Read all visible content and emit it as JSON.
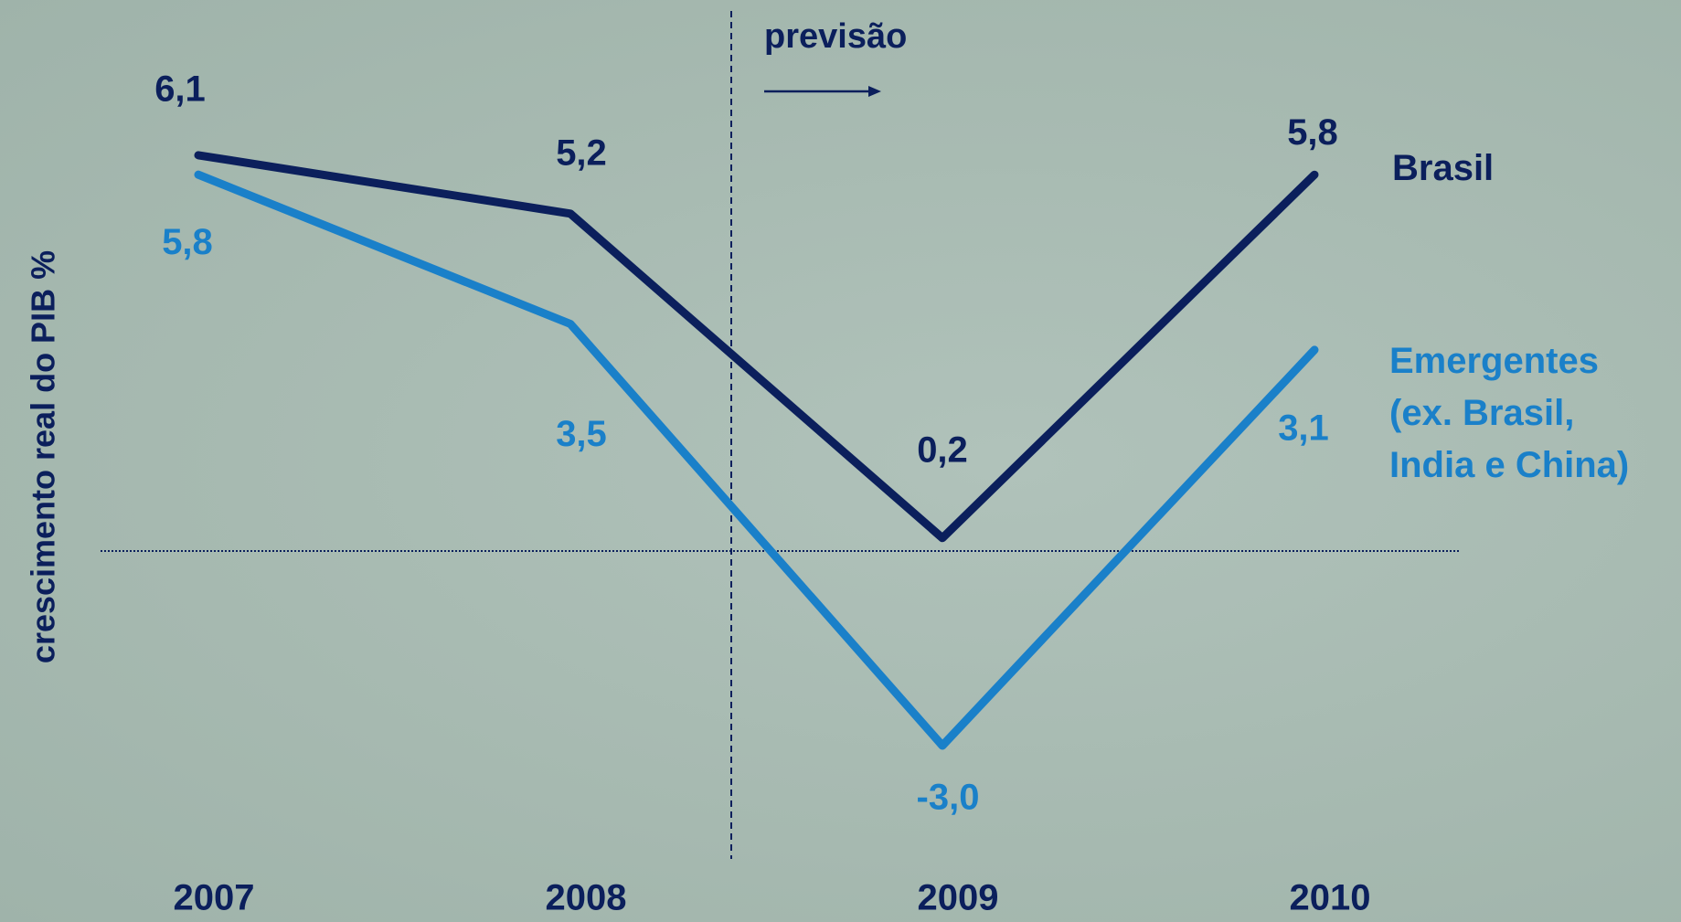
{
  "chart_data": {
    "type": "line",
    "y_label": "crescimento real do PIB %",
    "annotation": "previsão",
    "categories": [
      "2007",
      "2008",
      "2009",
      "2010"
    ],
    "series": [
      {
        "name": "Brasil",
        "color": "#0b1f5c",
        "values": [
          6.1,
          5.2,
          0.2,
          5.8
        ],
        "value_labels": [
          "6,1",
          "5,2",
          "0,2",
          "5,8"
        ]
      },
      {
        "name": "Emergentes\n(ex. Brasil,\nIndia e China)",
        "color": "#1a80c9",
        "values": [
          5.8,
          3.5,
          -3.0,
          3.1
        ],
        "value_labels": [
          "5,8",
          "3,5",
          "-3,0",
          "3,1"
        ]
      }
    ],
    "ylim": [
      -4,
      7
    ],
    "reference_line": 0
  }
}
